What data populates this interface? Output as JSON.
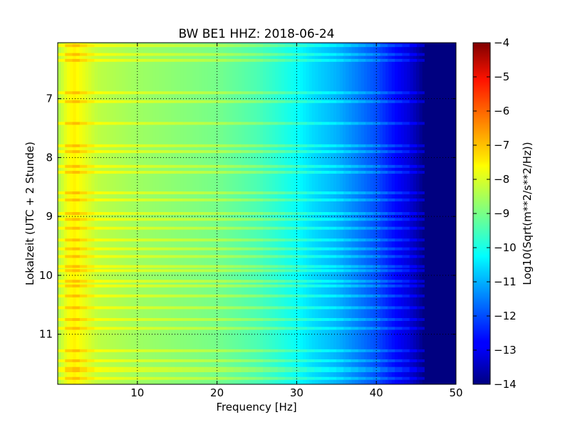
{
  "chart_data": {
    "type": "heatmap",
    "title": "BW BE1 HHZ: 2018-06-24",
    "xlabel": "Frequency [Hz]",
    "ylabel": "Lokalzeit (UTC + 2 Stunde)",
    "xlim": [
      0,
      50
    ],
    "ylim": [
      6.05,
      11.85
    ],
    "y_inverted": true,
    "x_ticks": [
      10,
      20,
      30,
      40,
      50
    ],
    "y_ticks": [
      7,
      8,
      9,
      10,
      11
    ],
    "grid": true,
    "colormap": "jet",
    "colorbar": {
      "label": "Log10(Sqrt(m**2/s**2/Hz))",
      "range": [
        -14,
        -4
      ],
      "ticks": [
        -4,
        -5,
        -6,
        -7,
        -8,
        -9,
        -10,
        -11,
        -12,
        -13,
        -14
      ]
    },
    "spectrum_profile": {
      "frequency_hz": [
        0,
        1,
        2,
        3,
        5,
        10,
        15,
        20,
        25,
        28,
        30,
        32,
        35,
        38,
        40,
        42,
        44,
        45,
        46,
        50
      ],
      "log10_amplitude": [
        -8.6,
        -8.0,
        -7.6,
        -7.9,
        -8.4,
        -8.7,
        -8.9,
        -9.1,
        -9.5,
        -9.9,
        -10.2,
        -10.6,
        -11.0,
        -11.6,
        -12.0,
        -12.6,
        -13.1,
        -13.5,
        -14.0,
        -14.0
      ]
    },
    "bright_bands_hours": [
      6.1,
      6.25,
      6.35,
      6.9,
      7.05,
      7.42,
      7.8,
      7.9,
      8.15,
      8.25,
      8.6,
      8.72,
      8.95,
      9.05,
      9.2,
      9.4,
      9.55,
      9.68,
      9.85,
      9.92,
      10.1,
      10.18,
      10.35,
      10.55,
      10.75,
      10.9,
      11.28,
      11.45,
      11.58,
      11.62,
      11.75
    ]
  }
}
